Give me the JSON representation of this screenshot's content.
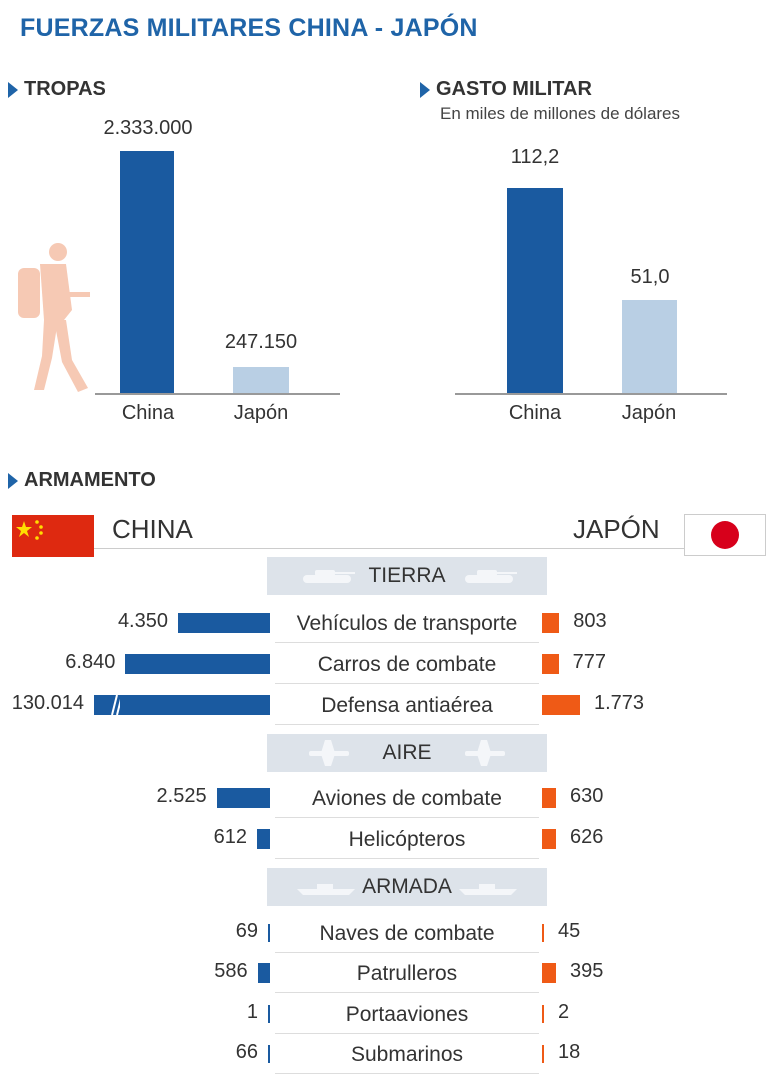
{
  "title": "FUERZAS MILITARES CHINA - JAPÓN",
  "colors": {
    "china_bar": "#1a5aa0",
    "japan_bar_top": "#b9cfe4",
    "japan_bar_armamento": "#ef5a16",
    "title": "#1f64a8",
    "category_band": "#dde3ea"
  },
  "tropas": {
    "title": "TROPAS",
    "china_value": "2.333.000",
    "japan_value": "247.150",
    "china_label": "China",
    "japan_label": "Japón",
    "icon": "soldier-icon"
  },
  "gasto": {
    "title": "GASTO MILITAR",
    "subtitle": "En miles de millones de dólares",
    "china_value": "112,2",
    "japan_value": "51,0",
    "china_label": "China",
    "japan_label": "Japón"
  },
  "armamento": {
    "title": "ARMAMENTO",
    "china": "CHINA",
    "japan": "JAPÓN",
    "cat_tierra": "TIERRA",
    "cat_aire": "AIRE",
    "cat_armada": "ARMADA",
    "rows": [
      {
        "label": "Vehículos de transporte",
        "china": "4.350",
        "japan": "803"
      },
      {
        "label": "Carros de combate",
        "china": "6.840",
        "japan": "777"
      },
      {
        "label": "Defensa antiaérea",
        "china": "130.014",
        "japan": "1.773"
      },
      {
        "label": "Aviones de combate",
        "china": "2.525",
        "japan": "630"
      },
      {
        "label": "Helicópteros",
        "china": "612",
        "japan": "626"
      },
      {
        "label": "Naves de combate",
        "china": "69",
        "japan": "45"
      },
      {
        "label": "Patrulleros",
        "china": "586",
        "japan": "395"
      },
      {
        "label": "Portaaviones",
        "china": "1",
        "japan": "2"
      },
      {
        "label": "Submarinos",
        "china": "66",
        "japan": "18"
      }
    ]
  },
  "chart_data": [
    {
      "type": "bar",
      "title": "TROPAS",
      "categories": [
        "China",
        "Japón"
      ],
      "values": [
        2333000,
        247150
      ]
    },
    {
      "type": "bar",
      "title": "GASTO MILITAR",
      "subtitle": "En miles de millones de dólares",
      "categories": [
        "China",
        "Japón"
      ],
      "values": [
        112.2,
        51.0
      ]
    },
    {
      "type": "bar",
      "title": "ARMAMENTO",
      "categories": [
        "Vehículos de transporte",
        "Carros de combate",
        "Defensa antiaérea",
        "Aviones de combate",
        "Helicópteros",
        "Naves de combate",
        "Patrulleros",
        "Portaaviones",
        "Submarinos"
      ],
      "groups": {
        "TIERRA": [
          "Vehículos de transporte",
          "Carros de combate",
          "Defensa antiaérea"
        ],
        "AIRE": [
          "Aviones de combate",
          "Helicópteros"
        ],
        "ARMADA": [
          "Naves de combate",
          "Patrulleros",
          "Portaaviones",
          "Submarinos"
        ]
      },
      "series": [
        {
          "name": "CHINA",
          "values": [
            4350,
            6840,
            130014,
            2525,
            612,
            69,
            586,
            1,
            66
          ]
        },
        {
          "name": "JAPÓN",
          "values": [
            803,
            777,
            1773,
            630,
            626,
            45,
            395,
            2,
            18
          ]
        }
      ]
    }
  ]
}
